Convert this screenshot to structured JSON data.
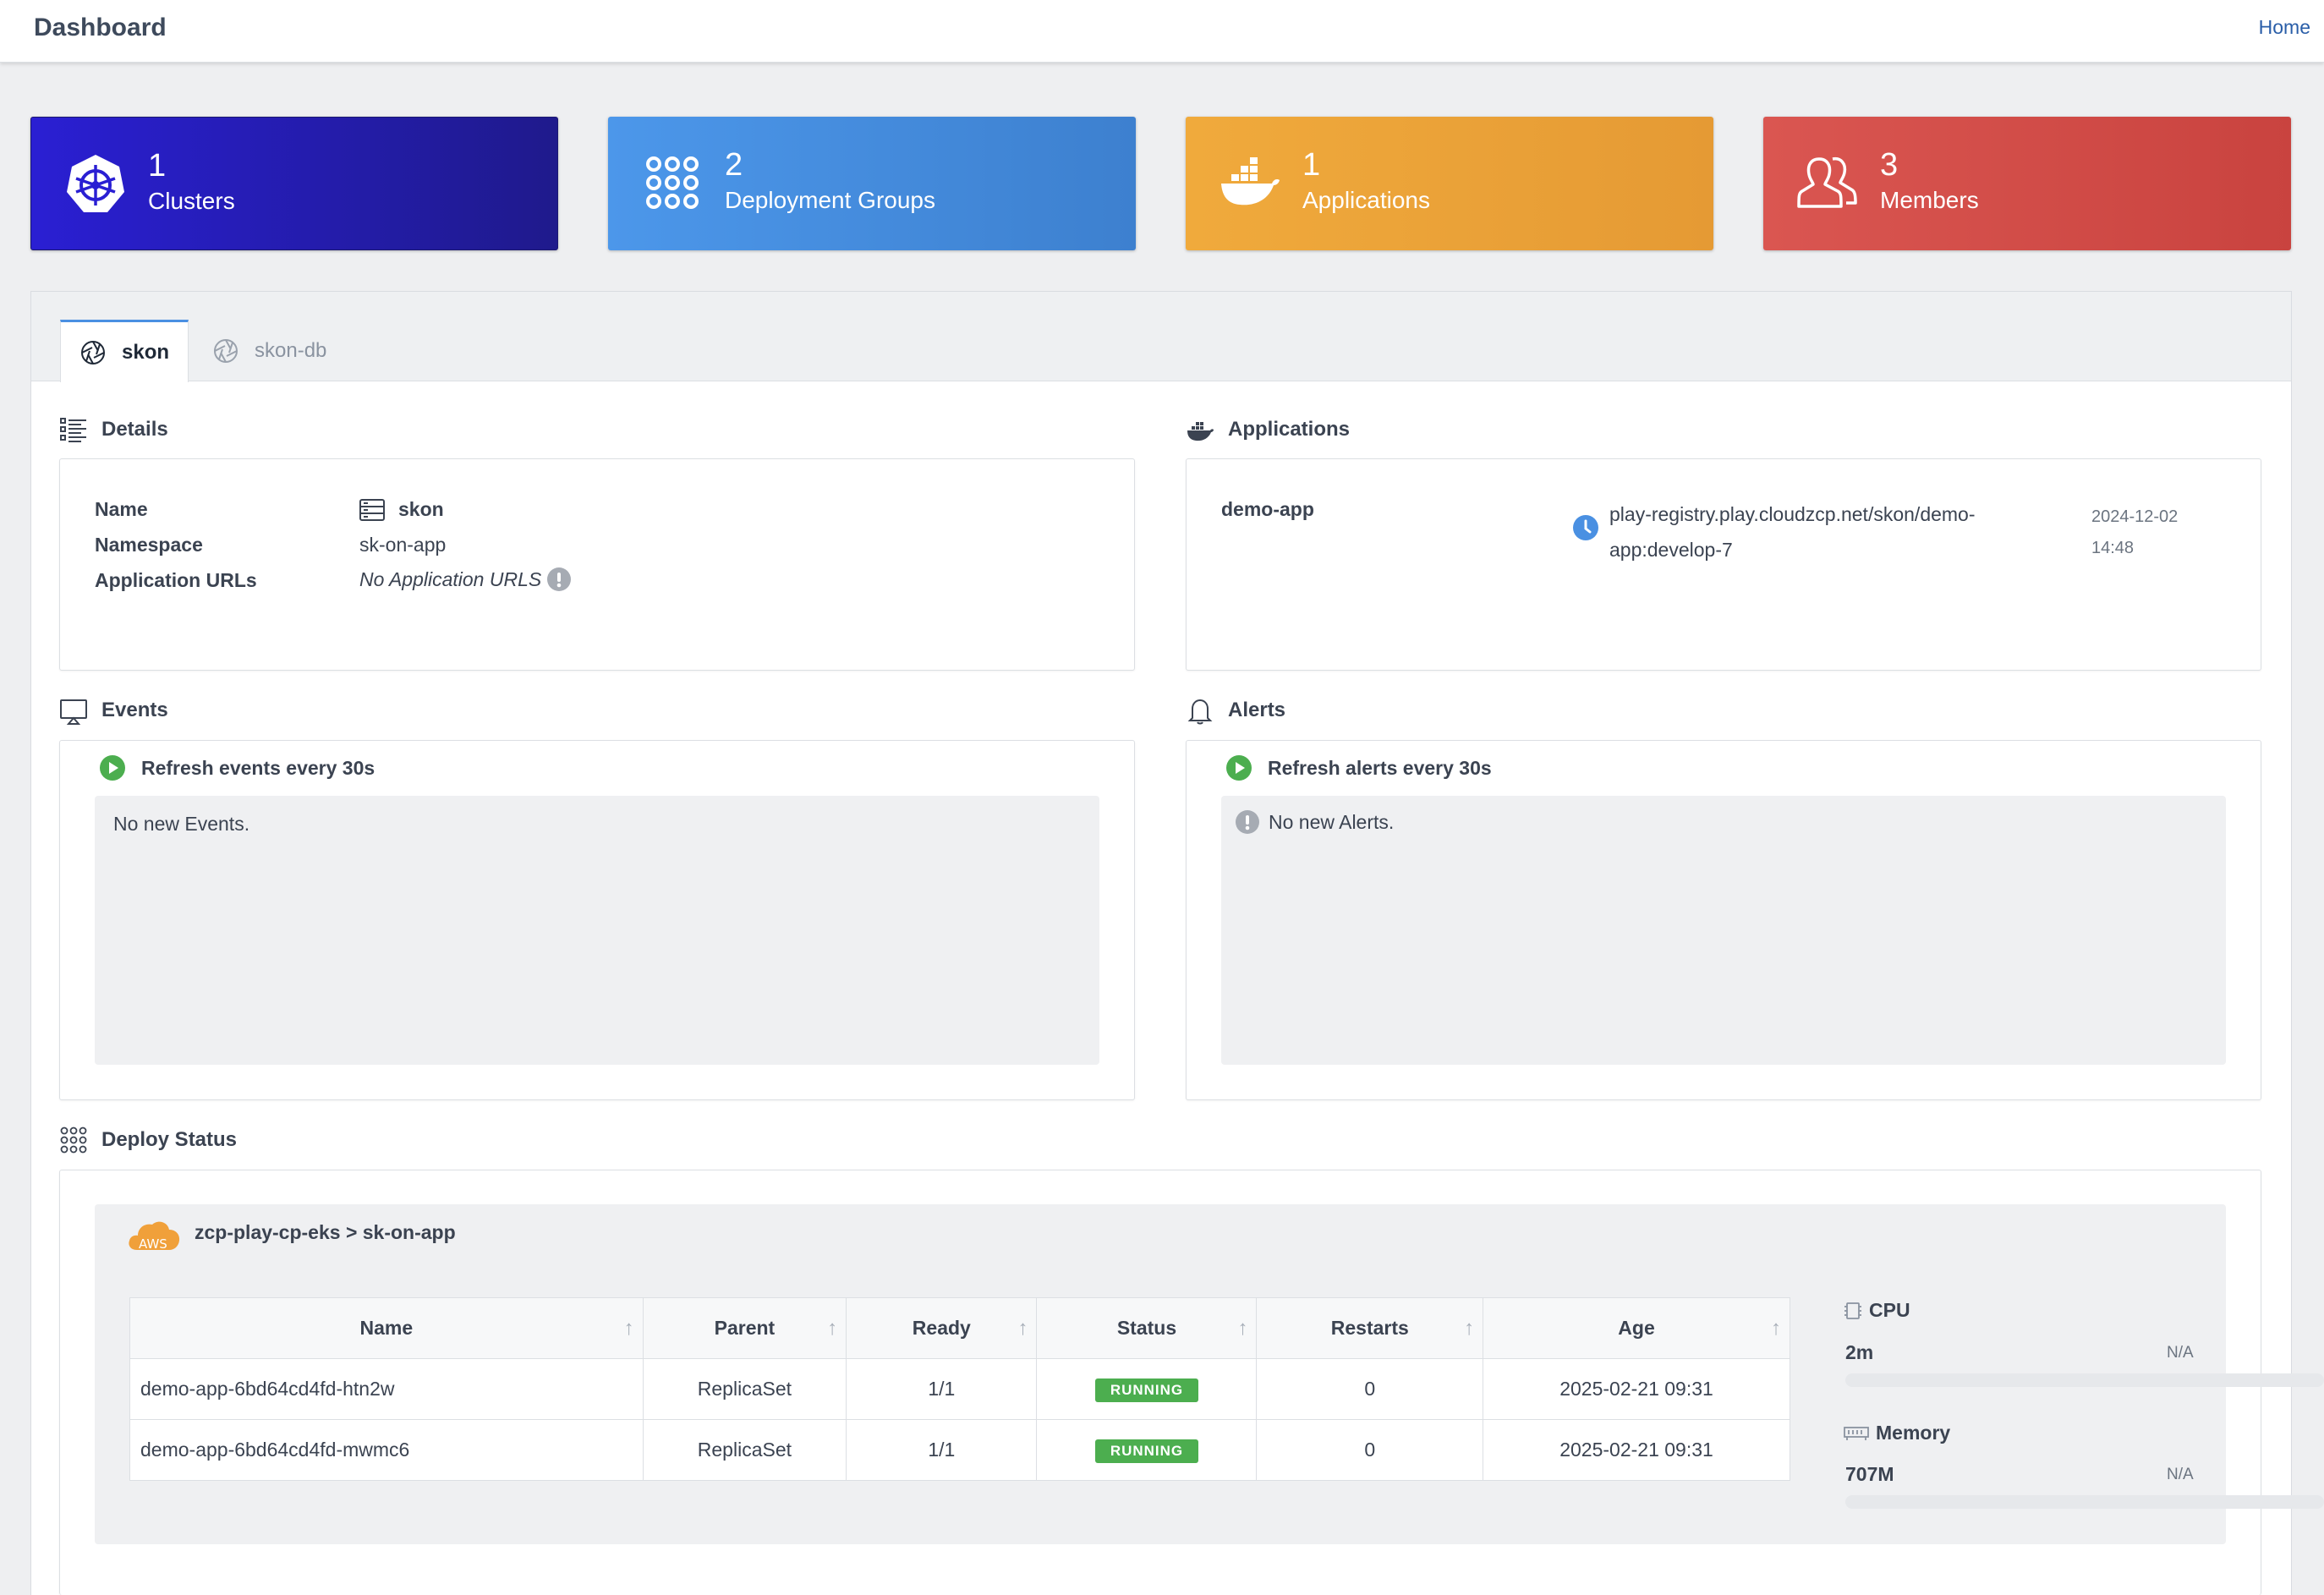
{
  "header": {
    "title": "Dashboard",
    "home_link": "Home"
  },
  "stats": [
    {
      "value": "1",
      "label": "Clusters",
      "icon": "kubernetes-icon",
      "color": "#2a1fd3"
    },
    {
      "value": "2",
      "label": "Deployment Groups",
      "icon": "grid-dots-icon",
      "color": "#4a90e2"
    },
    {
      "value": "1",
      "label": "Applications",
      "icon": "docker-icon",
      "color": "#eea53a"
    },
    {
      "value": "3",
      "label": "Members",
      "icon": "users-icon",
      "color": "#d44d49"
    }
  ],
  "tabs": [
    {
      "label": "skon",
      "active": true
    },
    {
      "label": "skon-db",
      "active": false
    }
  ],
  "details": {
    "heading": "Details",
    "name_label": "Name",
    "name_value": "skon",
    "namespace_label": "Namespace",
    "namespace_value": "sk-on-app",
    "urls_label": "Application URLs",
    "urls_value": "No Application URLS"
  },
  "applications": {
    "heading": "Applications",
    "items": [
      {
        "name": "demo-app",
        "image_line1": "play-registry.play.cloudzcp.net/skon/demo-",
        "image_line2": "app:develop-7",
        "date": "2024-12-02",
        "time": "14:48"
      }
    ]
  },
  "events": {
    "heading": "Events",
    "refresh_label": "Refresh events every 30s",
    "empty_text": "No new Events."
  },
  "alerts": {
    "heading": "Alerts",
    "refresh_label": "Refresh alerts every 30s",
    "empty_text": "No new Alerts."
  },
  "deploy_status": {
    "heading": "Deploy Status",
    "cloud_badge": "AWS",
    "cluster_path": "zcp-play-cp-eks > sk-on-app",
    "columns": [
      "Name",
      "Parent",
      "Ready",
      "Status",
      "Restarts",
      "Age"
    ],
    "rows": [
      {
        "name": "demo-app-6bd64cd4fd-htn2w",
        "parent": "ReplicaSet",
        "ready": "1/1",
        "status": "RUNNING",
        "restarts": "0",
        "age": "2025-02-21 09:31"
      },
      {
        "name": "demo-app-6bd64cd4fd-mwmc6",
        "parent": "ReplicaSet",
        "ready": "1/1",
        "status": "RUNNING",
        "restarts": "0",
        "age": "2025-02-21 09:31"
      }
    ],
    "cpu": {
      "label": "CPU",
      "value": "2m",
      "limit": "N/A"
    },
    "memory": {
      "label": "Memory",
      "value": "707M",
      "limit": "N/A"
    }
  }
}
